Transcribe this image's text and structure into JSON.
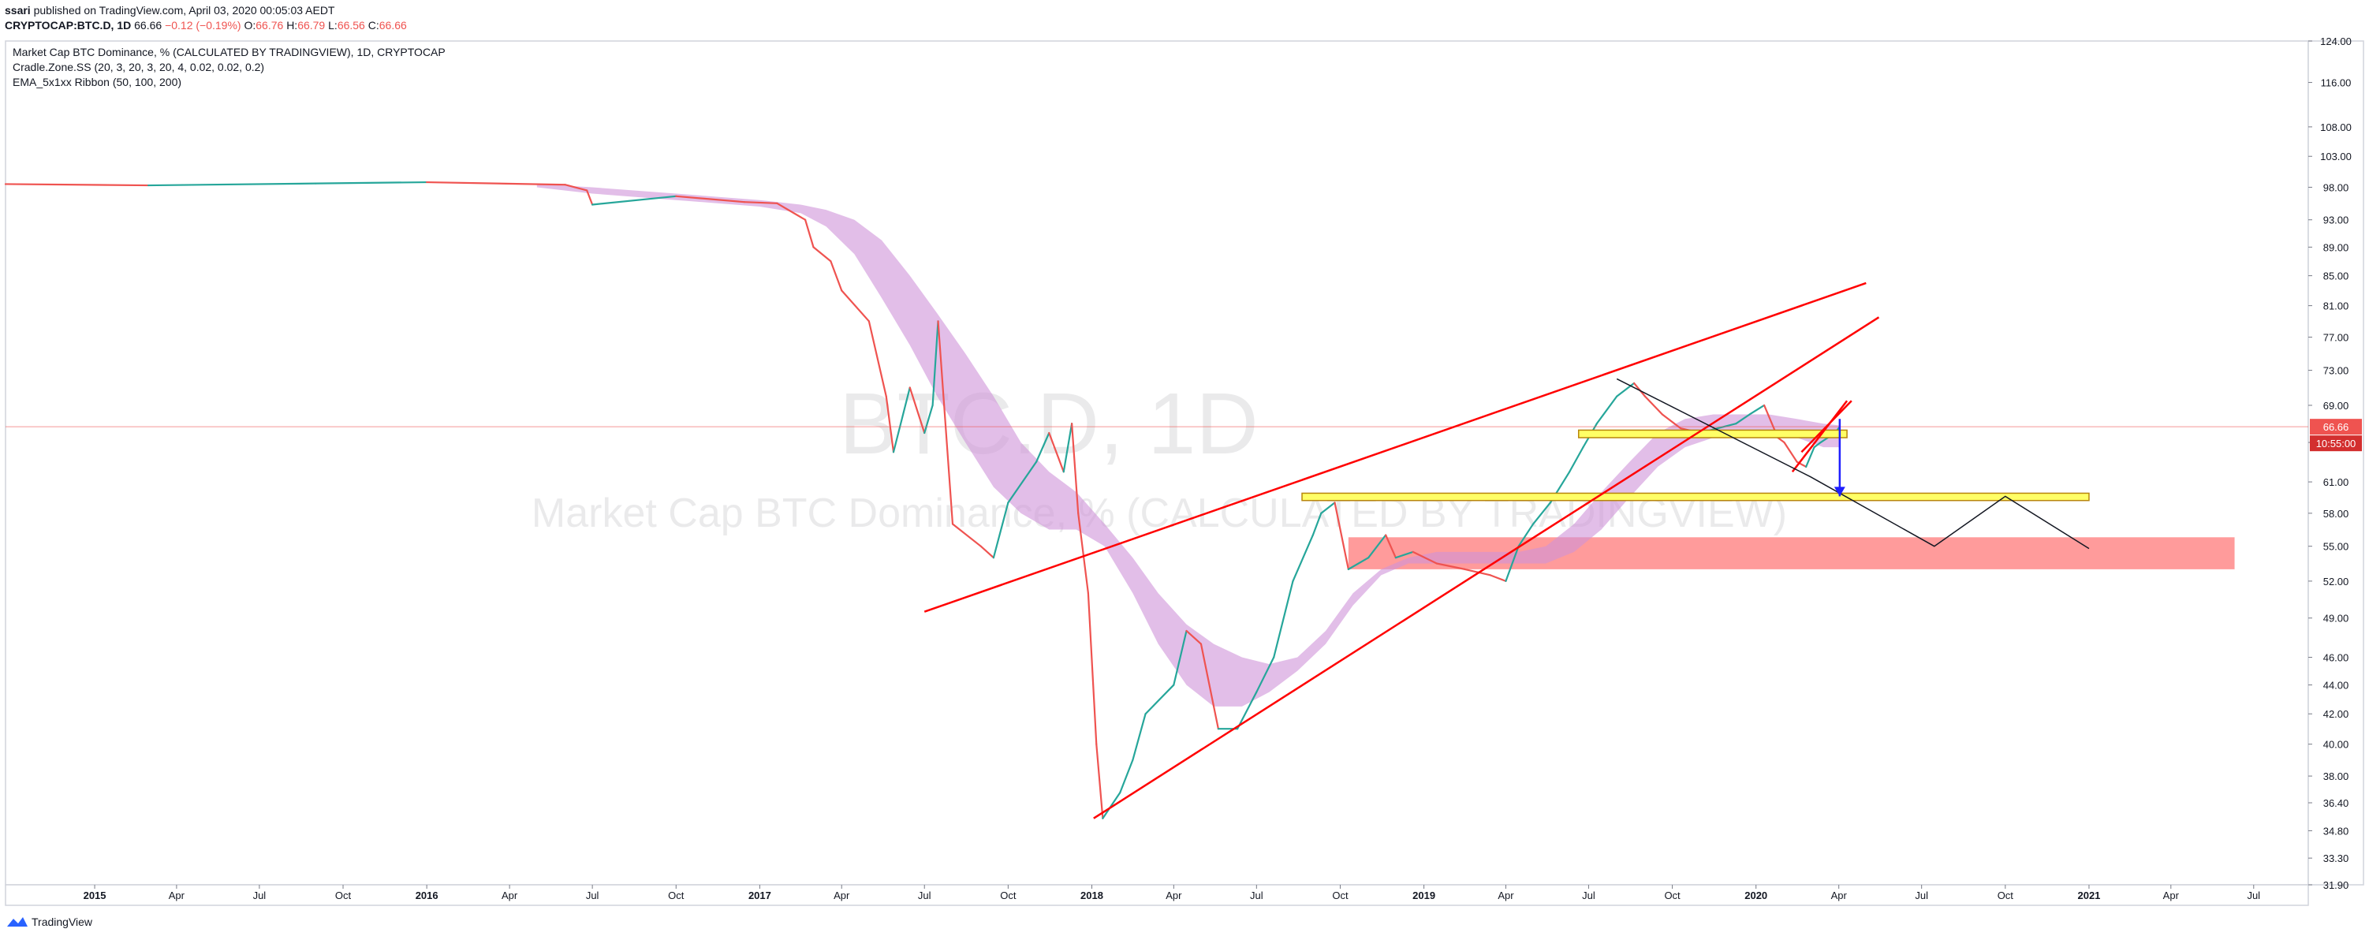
{
  "header": {
    "author": "ssari",
    "published": "published on TradingView.com, April 03, 2020 00:05:03 AEDT"
  },
  "symbol_line": {
    "symbol": "CRYPTOCAP:BTC.D, 1D",
    "price": "66.66",
    "change": "−0.12 (−0.19%)",
    "o_label": "O:",
    "o_value": "66.76",
    "h_label": "H:",
    "h_value": "66.79",
    "l_label": "L:",
    "l_value": "66.56",
    "c_label": "C:",
    "c_value": "66.66"
  },
  "legend": {
    "title": "Market Cap BTC Dominance, % (CALCULATED BY TRADINGVIEW), 1D, CRYPTOCAP",
    "indicator1": "Cradle.Zone.SS (20, 3, 20, 3, 20, 4, 0.02, 0.02, 0.2)",
    "indicator2": "EMA_5x1xx Ribbon  (50, 100, 200)"
  },
  "watermark": {
    "big": "BTC.D, 1D",
    "small": "Market Cap BTC Dominance, % (CALCULATED BY TRADINGVIEW)"
  },
  "price_label": {
    "value": "66.66",
    "countdown": "10:55:00"
  },
  "footer": {
    "brand": "TradingView"
  },
  "colors": {
    "up": "#26a69a",
    "down": "#ef5350",
    "ribbon": "#ce93d8",
    "trendline": "#ff0000",
    "support": "#ffff66",
    "zone": "#ff8a8a",
    "arrow": "#1e1eff"
  },
  "chart_data": {
    "type": "line",
    "y_scale": "log",
    "ylim": [
      31.9,
      124
    ],
    "xlim": [
      "2014-09-25",
      "2021-08-30"
    ],
    "y_ticks": [
      "124.00",
      "116.00",
      "108.00",
      "103.00",
      "98.00",
      "93.00",
      "89.00",
      "85.00",
      "81.00",
      "77.00",
      "73.00",
      "69.00",
      "65.00",
      "61.00",
      "58.00",
      "55.00",
      "52.00",
      "49.00",
      "46.00",
      "44.00",
      "42.00",
      "40.00",
      "38.00",
      "36.40",
      "34.80",
      "33.30",
      "31.90"
    ],
    "x_ticks": [
      {
        "label": "2015",
        "date": "2015-01-01",
        "bold": true
      },
      {
        "label": "Apr",
        "date": "2015-04-01"
      },
      {
        "label": "Jul",
        "date": "2015-07-01"
      },
      {
        "label": "Oct",
        "date": "2015-10-01"
      },
      {
        "label": "2016",
        "date": "2016-01-01",
        "bold": true
      },
      {
        "label": "Apr",
        "date": "2016-04-01"
      },
      {
        "label": "Jul",
        "date": "2016-07-01"
      },
      {
        "label": "Oct",
        "date": "2016-10-01"
      },
      {
        "label": "2017",
        "date": "2017-01-01",
        "bold": true
      },
      {
        "label": "Apr",
        "date": "2017-04-01"
      },
      {
        "label": "Jul",
        "date": "2017-07-01"
      },
      {
        "label": "Oct",
        "date": "2017-10-01"
      },
      {
        "label": "2018",
        "date": "2018-01-01",
        "bold": true
      },
      {
        "label": "Apr",
        "date": "2018-04-01"
      },
      {
        "label": "Jul",
        "date": "2018-07-01"
      },
      {
        "label": "Oct",
        "date": "2018-10-01"
      },
      {
        "label": "2019",
        "date": "2019-01-01",
        "bold": true
      },
      {
        "label": "Apr",
        "date": "2019-04-01"
      },
      {
        "label": "Jul",
        "date": "2019-07-01"
      },
      {
        "label": "Oct",
        "date": "2019-10-01"
      },
      {
        "label": "2020",
        "date": "2020-01-01",
        "bold": true
      },
      {
        "label": "Apr",
        "date": "2020-04-01"
      },
      {
        "label": "Jul",
        "date": "2020-07-01"
      },
      {
        "label": "Oct",
        "date": "2020-10-01"
      },
      {
        "label": "2021",
        "date": "2021-01-01",
        "bold": true
      },
      {
        "label": "Apr",
        "date": "2021-04-01"
      },
      {
        "label": "Jul",
        "date": "2021-07-01"
      }
    ],
    "series": [
      {
        "kind": "price",
        "x": [
          "2014-09-25",
          "2015-03-01",
          "2015-09-01",
          "2016-01-01",
          "2016-06-01",
          "2016-06-25",
          "2016-07-01",
          "2016-10-01",
          "2016-12-15",
          "2017-01-20",
          "2017-02-20",
          "2017-03-01",
          "2017-03-20",
          "2017-04-01",
          "2017-05-01",
          "2017-05-20",
          "2017-05-28",
          "2017-06-15",
          "2017-07-01",
          "2017-07-10",
          "2017-07-16",
          "2017-08-01",
          "2017-09-01",
          "2017-09-15",
          "2017-10-01",
          "2017-11-01",
          "2017-11-15",
          "2017-12-01",
          "2017-12-10",
          "2017-12-17",
          "2017-12-28",
          "2018-01-06",
          "2018-01-13",
          "2018-02-01",
          "2018-02-15",
          "2018-03-01",
          "2018-04-01",
          "2018-04-15",
          "2018-05-01",
          "2018-05-20",
          "2018-06-10",
          "2018-07-01",
          "2018-07-20",
          "2018-08-10",
          "2018-09-01",
          "2018-09-10",
          "2018-09-25",
          "2018-10-10",
          "2018-11-01",
          "2018-11-20",
          "2018-12-01",
          "2018-12-20",
          "2019-01-15",
          "2019-02-15",
          "2019-03-15",
          "2019-04-01",
          "2019-04-15",
          "2019-05-01",
          "2019-05-20",
          "2019-06-10",
          "2019-06-25",
          "2019-07-10",
          "2019-08-01",
          "2019-08-20",
          "2019-09-01",
          "2019-09-20",
          "2019-10-10",
          "2019-11-01",
          "2019-11-20",
          "2019-12-10",
          "2019-12-25",
          "2020-01-10",
          "2020-01-25",
          "2020-02-01",
          "2020-02-15",
          "2020-02-25",
          "2020-03-05",
          "2020-03-12",
          "2020-03-20",
          "2020-03-28",
          "2020-04-02"
        ],
        "y": [
          98.5,
          98.3,
          98.6,
          98.8,
          98.4,
          97.5,
          95.3,
          96.6,
          95.7,
          95.5,
          93.0,
          89.0,
          87.0,
          83.0,
          79.0,
          70.0,
          64.0,
          71.0,
          66.0,
          69.0,
          79.0,
          57.0,
          55.0,
          54.0,
          59.0,
          63.0,
          66.0,
          62.0,
          67.0,
          58.0,
          51.0,
          40.0,
          35.5,
          37.0,
          39.0,
          42.0,
          44.0,
          48.0,
          47.0,
          41.0,
          41.0,
          43.5,
          46.0,
          52.0,
          56.0,
          58.0,
          59.0,
          53.0,
          54.0,
          56.0,
          54.0,
          54.5,
          53.5,
          53.0,
          52.5,
          52.0,
          55.0,
          57.0,
          59.0,
          62.0,
          64.5,
          67.0,
          70.0,
          71.5,
          70.0,
          68.0,
          66.5,
          66.0,
          66.5,
          67.0,
          68.0,
          69.0,
          65.5,
          65.0,
          63.0,
          62.5,
          64.5,
          65.0,
          65.5,
          66.0,
          66.66
        ]
      },
      {
        "kind": "ema-ribbon",
        "name": "",
        "x": [
          "2016-05-01",
          "2016-07-01",
          "2016-10-01",
          "2017-01-01",
          "2017-02-15",
          "2017-03-15",
          "2017-04-15",
          "2017-05-15",
          "2017-06-15",
          "2017-07-15",
          "2017-08-15",
          "2017-09-15",
          "2017-10-15",
          "2017-11-15",
          "2017-12-15",
          "2018-01-15",
          "2018-02-15",
          "2018-03-15",
          "2018-04-15",
          "2018-05-15",
          "2018-06-15",
          "2018-07-15",
          "2018-08-15",
          "2018-09-15",
          "2018-10-15",
          "2018-11-15",
          "2018-12-15",
          "2019-01-15",
          "2019-02-15",
          "2019-03-15",
          "2019-04-15",
          "2019-05-15",
          "2019-06-15",
          "2019-07-15",
          "2019-08-15",
          "2019-09-15",
          "2019-10-15",
          "2019-11-15",
          "2019-12-15",
          "2020-01-15",
          "2020-02-15",
          "2020-03-15",
          "2020-04-02"
        ],
        "upper": [
          98.5,
          98.0,
          97.0,
          96.0,
          95.3,
          94.5,
          93.0,
          90.0,
          85.0,
          80.0,
          75.0,
          70.0,
          65.0,
          62.0,
          60.0,
          57.0,
          54.0,
          51.0,
          48.5,
          47.0,
          46.0,
          45.5,
          46.0,
          48.0,
          51.0,
          53.0,
          54.0,
          54.5,
          54.5,
          54.5,
          54.5,
          55.0,
          57.0,
          60.0,
          63.0,
          66.0,
          67.5,
          68.0,
          68.0,
          68.0,
          67.5,
          67.0,
          66.8
        ],
        "lower": [
          98.0,
          97.0,
          96.0,
          95.0,
          94.0,
          92.0,
          88.0,
          82.0,
          76.0,
          70.0,
          65.0,
          60.5,
          58.0,
          56.5,
          56.5,
          55.0,
          51.0,
          47.0,
          44.0,
          42.5,
          42.5,
          43.5,
          45.0,
          47.0,
          50.0,
          52.5,
          53.5,
          53.5,
          53.5,
          53.5,
          53.5,
          53.5,
          54.5,
          56.5,
          59.5,
          62.5,
          64.5,
          65.5,
          66.0,
          66.0,
          65.5,
          64.5,
          64.5
        ]
      }
    ],
    "annotations": {
      "trendlines": [
        {
          "x": [
            "2017-07-01",
            "2020-05-01"
          ],
          "y": [
            49.5,
            84.0
          ]
        },
        {
          "x": [
            "2018-01-03",
            "2020-05-15"
          ],
          "y": [
            35.5,
            79.5
          ]
        },
        {
          "x": [
            "2020-02-10",
            "2020-04-10"
          ],
          "y": [
            62.0,
            69.5
          ]
        },
        {
          "x": [
            "2020-02-20",
            "2020-04-15"
          ],
          "y": [
            64.0,
            69.5
          ]
        }
      ],
      "black_path": {
        "x": [
          "2019-08-01",
          "2020-03-01",
          "2020-07-15",
          "2020-10-01",
          "2021-01-01"
        ],
        "y": [
          72.0,
          61.5,
          55.0,
          59.6,
          54.8
        ]
      },
      "support_boxes": [
        {
          "x": [
            "2019-06-20",
            "2020-04-10"
          ],
          "y": [
            65.5,
            66.3
          ]
        },
        {
          "x": [
            "2018-08-20",
            "2021-01-01"
          ],
          "y": [
            59.2,
            59.9
          ]
        }
      ],
      "zone": {
        "x": [
          "2018-10-10",
          "2021-06-10"
        ],
        "y": [
          53.0,
          55.8
        ]
      },
      "arrow": {
        "x": [
          "2020-04-02",
          "2020-04-02"
        ],
        "y": [
          67.5,
          59.6
        ]
      },
      "price_line": 66.66
    }
  }
}
